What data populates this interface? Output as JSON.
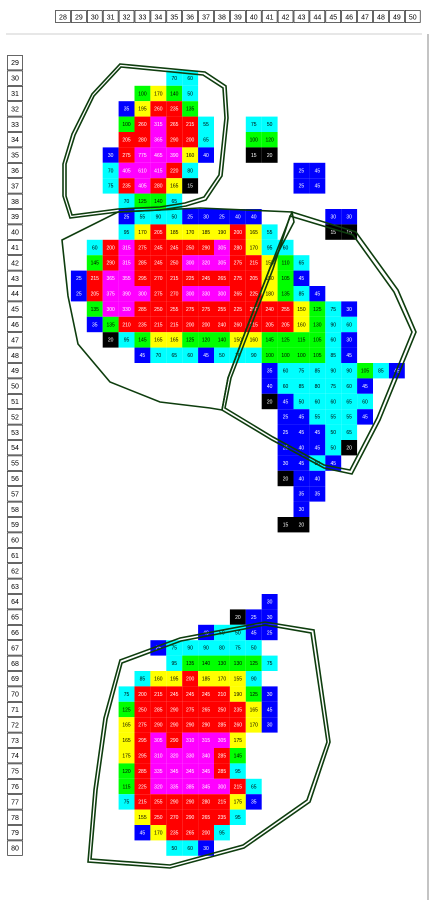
{
  "chart_data": {
    "type": "heatmap",
    "title": "",
    "xlabel": "",
    "ylabel": "",
    "x_ticks": [
      28,
      29,
      30,
      31,
      32,
      33,
      34,
      35,
      36,
      37,
      38,
      39,
      40,
      41,
      42,
      43,
      44,
      45,
      46,
      47,
      48,
      49,
      50
    ],
    "y_ticks": [
      29,
      30,
      31,
      32,
      33,
      34,
      35,
      36,
      37,
      38,
      39,
      40,
      41,
      42,
      43,
      44,
      45,
      46,
      47,
      48,
      49,
      50,
      51,
      52,
      53,
      54,
      55,
      56,
      57,
      58,
      59,
      60,
      61,
      62,
      63,
      64,
      65,
      66,
      67,
      68,
      69,
      70,
      71,
      72,
      73,
      74,
      75,
      76,
      77,
      78,
      79,
      80
    ],
    "color_scale": [
      {
        "min": 0,
        "max": 25,
        "color": "#000000"
      },
      {
        "min": 25,
        "max": 50,
        "color": "#0000ff"
      },
      {
        "min": 50,
        "max": 100,
        "color": "#00ffff"
      },
      {
        "min": 100,
        "max": 150,
        "color": "#00ff00"
      },
      {
        "min": 150,
        "max": 200,
        "color": "#ffff00"
      },
      {
        "min": 200,
        "max": 250,
        "color": "#ff0000"
      },
      {
        "min": 250,
        "max": 300,
        "color": "#ff0000"
      },
      {
        "min": 300,
        "max": 9999,
        "color": "#ff00ff"
      }
    ],
    "rows": [
      {
        "y": 30,
        "x0": 35,
        "values": [
          70,
          60
        ]
      },
      {
        "y": 31,
        "x0": 33,
        "values": [
          100,
          170,
          140,
          50
        ]
      },
      {
        "y": 32,
        "x0": 32,
        "values": [
          35,
          195,
          260,
          235,
          135
        ]
      },
      {
        "y": 33,
        "x0": 32,
        "values": [
          100,
          260,
          315,
          265,
          215,
          55
        ]
      },
      {
        "y": 33,
        "x0": 40,
        "values": [
          75,
          50
        ]
      },
      {
        "y": 34,
        "x0": 32,
        "values": [
          205,
          280,
          365,
          290,
          200,
          65
        ]
      },
      {
        "y": 34,
        "x0": 40,
        "values": [
          100,
          120
        ]
      },
      {
        "y": 35,
        "x0": 31,
        "values": [
          30,
          275,
          775,
          465,
          390,
          160,
          40
        ]
      },
      {
        "y": 35,
        "x0": 40,
        "values": [
          15,
          20
        ]
      },
      {
        "y": 36,
        "x0": 31,
        "values": [
          70,
          405,
          610,
          415,
          220,
          80
        ]
      },
      {
        "y": 36,
        "x0": 43,
        "values": [
          25,
          45
        ]
      },
      {
        "y": 37,
        "x0": 31,
        "values": [
          75,
          235,
          405,
          280,
          165,
          15
        ]
      },
      {
        "y": 37,
        "x0": 43,
        "values": [
          25,
          45
        ]
      },
      {
        "y": 38,
        "x0": 32,
        "values": [
          70,
          125,
          140,
          65
        ]
      },
      {
        "y": 39,
        "x0": 32,
        "values": [
          25,
          55,
          90,
          50,
          25,
          30,
          25,
          40,
          40
        ]
      },
      {
        "y": 39,
        "x0": 45,
        "values": [
          30,
          30
        ]
      },
      {
        "y": 40,
        "x0": 32,
        "values": [
          95,
          170,
          205,
          185,
          170,
          185,
          190,
          200,
          165,
          55
        ]
      },
      {
        "y": 40,
        "x0": 45,
        "values": [
          15,
          15
        ]
      },
      {
        "y": 41,
        "x0": 30,
        "values": [
          60,
          200,
          315,
          275,
          245,
          245,
          250,
          290,
          305,
          280,
          170,
          95,
          60
        ]
      },
      {
        "y": 42,
        "x0": 30,
        "values": [
          145,
          290,
          315,
          285,
          245,
          250,
          300,
          320,
          305,
          275,
          215,
          155,
          110,
          65
        ]
      },
      {
        "y": 43,
        "x0": 29,
        "values": [
          25,
          215,
          365,
          355,
          295,
          270,
          215,
          225,
          245,
          265,
          275,
          205,
          150,
          105,
          45
        ]
      },
      {
        "y": 44,
        "x0": 29,
        "values": [
          25,
          205,
          375,
          390,
          300,
          275,
          270,
          300,
          330,
          300,
          265,
          225,
          180,
          135,
          85,
          45
        ]
      },
      {
        "y": 45,
        "x0": 30,
        "values": [
          135,
          300,
          330,
          285,
          250,
          255,
          275,
          275,
          255,
          225,
          250,
          240,
          255,
          150,
          125,
          75,
          30
        ]
      },
      {
        "y": 46,
        "x0": 30,
        "values": [
          35,
          135,
          210,
          235,
          215,
          215,
          200,
          200,
          240,
          260,
          215,
          205,
          205,
          160,
          130,
          90,
          60
        ]
      },
      {
        "y": 47,
        "x0": 31,
        "values": [
          20,
          95,
          145,
          165,
          165,
          125,
          120,
          140,
          150,
          160,
          145,
          125,
          115,
          105,
          60,
          30
        ]
      },
      {
        "y": 48,
        "x0": 33,
        "values": [
          45,
          70,
          65,
          60,
          45,
          50,
          70,
          90,
          100,
          100,
          100,
          105,
          85,
          45
        ]
      },
      {
        "y": 49,
        "x0": 41,
        "values": [
          35,
          60,
          75,
          85,
          90,
          90,
          105,
          85,
          45
        ]
      },
      {
        "y": 50,
        "x0": 41,
        "values": [
          40,
          60,
          85,
          80,
          75,
          60,
          45
        ]
      },
      {
        "y": 51,
        "x0": 41,
        "values": [
          20,
          45,
          50,
          60,
          60,
          65,
          60
        ]
      },
      {
        "y": 52,
        "x0": 42,
        "values": [
          25,
          45,
          55,
          55,
          55,
          45
        ]
      },
      {
        "y": 53,
        "x0": 42,
        "values": [
          25,
          45,
          45,
          50,
          65
        ]
      },
      {
        "y": 54,
        "x0": 42,
        "values": [
          25,
          40,
          45,
          50,
          20
        ]
      },
      {
        "y": 55,
        "x0": 42,
        "values": [
          30,
          45,
          50,
          45
        ]
      },
      {
        "y": 56,
        "x0": 42,
        "values": [
          20,
          40,
          40
        ]
      },
      {
        "y": 57,
        "x0": 43,
        "values": [
          35,
          35
        ]
      },
      {
        "y": 58,
        "x0": 43,
        "values": [
          30
        ]
      },
      {
        "y": 59,
        "x0": 42,
        "values": [
          15,
          20
        ]
      },
      {
        "y": 64,
        "x0": 41,
        "values": [
          30
        ]
      },
      {
        "y": 65,
        "x0": 39,
        "values": [
          20,
          25,
          30
        ]
      },
      {
        "y": 66,
        "x0": 37,
        "values": [
          40,
          50,
          50,
          45,
          25
        ]
      },
      {
        "y": 67,
        "x0": 34,
        "values": [
          25,
          75,
          90,
          90,
          80,
          75,
          50
        ]
      },
      {
        "y": 68,
        "x0": 35,
        "values": [
          95,
          135,
          140,
          130,
          130,
          125,
          75
        ]
      },
      {
        "y": 69,
        "x0": 33,
        "values": [
          85,
          160,
          195,
          200,
          185,
          170,
          155,
          90
        ]
      },
      {
        "y": 70,
        "x0": 32,
        "values": [
          75,
          200,
          215,
          245,
          245,
          245,
          210,
          190,
          125,
          30
        ]
      },
      {
        "y": 71,
        "x0": 32,
        "values": [
          125,
          250,
          285,
          290,
          275,
          265,
          250,
          235,
          165,
          45
        ]
      },
      {
        "y": 72,
        "x0": 32,
        "values": [
          165,
          275,
          290,
          290,
          290,
          290,
          285,
          260,
          170,
          30
        ]
      },
      {
        "y": 73,
        "x0": 32,
        "values": [
          165,
          295,
          305,
          290,
          310,
          315,
          305,
          175
        ]
      },
      {
        "y": 74,
        "x0": 32,
        "values": [
          175,
          295,
          310,
          320,
          330,
          340,
          285,
          145
        ]
      },
      {
        "y": 75,
        "x0": 32,
        "values": [
          120,
          285,
          335,
          345,
          345,
          345,
          285,
          95
        ]
      },
      {
        "y": 76,
        "x0": 32,
        "values": [
          115,
          225,
          320,
          335,
          385,
          345,
          300,
          215,
          65
        ]
      },
      {
        "y": 77,
        "x0": 32,
        "values": [
          75,
          215,
          255,
          290,
          290,
          280,
          215,
          175,
          35
        ]
      },
      {
        "y": 78,
        "x0": 33,
        "values": [
          155,
          250,
          270,
          290,
          265,
          235,
          95
        ]
      },
      {
        "y": 79,
        "x0": 33,
        "values": [
          45,
          170,
          235,
          265,
          200,
          95
        ]
      },
      {
        "y": 80,
        "x0": 35,
        "values": [
          50,
          60,
          30
        ]
      }
    ]
  }
}
